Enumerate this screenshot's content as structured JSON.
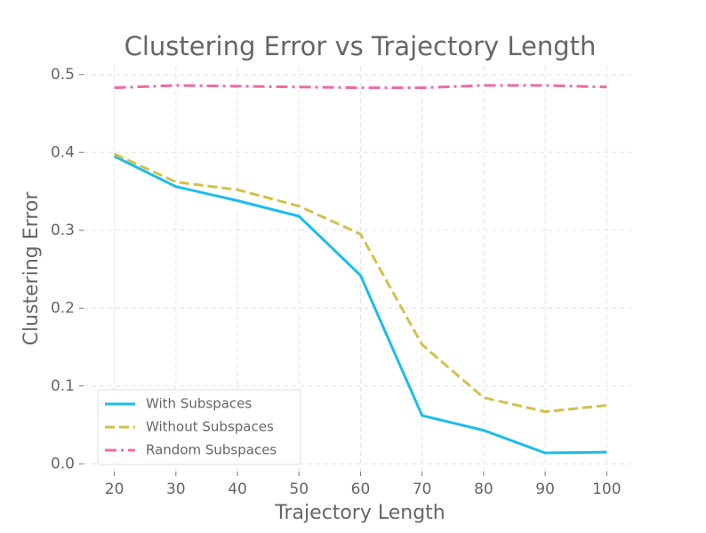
{
  "chart_data": {
    "type": "line",
    "title": "Clustering Error vs Trajectory Length",
    "x_label": "Trajectory Length",
    "y_label": "Clustering Error",
    "x": [
      20,
      30,
      40,
      50,
      60,
      70,
      80,
      90,
      100
    ],
    "series": [
      {
        "name": "With Subspaces",
        "color": "#1bbdea",
        "style": "solid",
        "values": [
          0.395,
          0.356,
          0.338,
          0.318,
          0.242,
          0.062,
          0.043,
          0.014,
          0.015
        ]
      },
      {
        "name": "Without Subspaces",
        "color": "#d4c04a",
        "style": "dashed",
        "values": [
          0.398,
          0.362,
          0.352,
          0.331,
          0.295,
          0.153,
          0.085,
          0.067,
          0.075
        ]
      },
      {
        "name": "Random Subspaces",
        "color": "#ee6aa7",
        "style": "dashdot",
        "values": [
          0.483,
          0.486,
          0.485,
          0.484,
          0.483,
          0.483,
          0.486,
          0.486,
          0.484
        ]
      }
    ],
    "xlim": [
      15,
      104
    ],
    "xticks": [
      20,
      30,
      40,
      50,
      60,
      70,
      80,
      90,
      100
    ],
    "ylim": [
      -0.01,
      0.51
    ],
    "yticks": [
      {
        "value": 0,
        "label": "0.0"
      },
      0.1,
      0.2,
      0.3,
      0.4,
      0.5
    ],
    "grid": true,
    "legend": "lower left"
  }
}
